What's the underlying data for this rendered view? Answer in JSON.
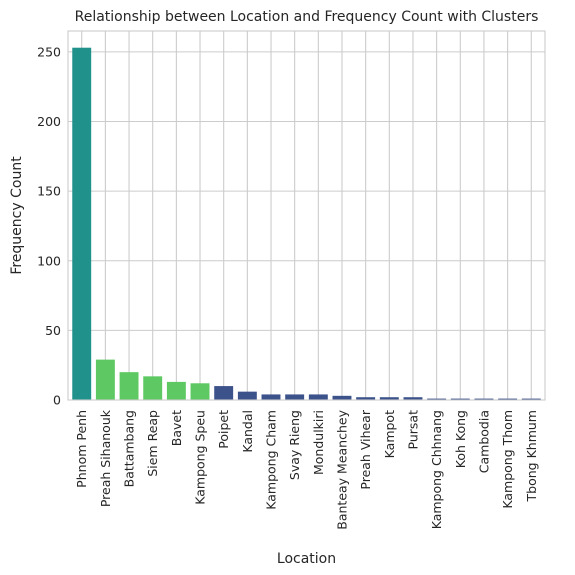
{
  "chart_data": {
    "type": "bar",
    "title": "Relationship between Location and Frequency Count with Clusters",
    "xlabel": "Location",
    "ylabel": "Frequency Count",
    "ylim": [
      0,
      265
    ],
    "yticks": [
      0,
      50,
      100,
      150,
      200,
      250
    ],
    "grid": true,
    "categories": [
      "Phnom Penh",
      "Preah Sihanouk",
      "Battambang",
      "Siem Reap",
      "Bavet",
      "Kampong Speu",
      "Poipet",
      "Kandal",
      "Kampong Cham",
      "Svay Rieng",
      "Mondulkiri",
      "Banteay Meanchey",
      "Preah Vihear",
      "Kampot",
      "Pursat",
      "Kampong Chhnang",
      "Koh Kong",
      "Cambodia",
      "Kampong Thom",
      "Tbong Khmum"
    ],
    "values": [
      253,
      29,
      20,
      17,
      13,
      12,
      10,
      6,
      4,
      4,
      4,
      3,
      2,
      2,
      2,
      1,
      1,
      1,
      1,
      1
    ],
    "clusters": [
      1,
      2,
      2,
      2,
      2,
      2,
      0,
      0,
      0,
      0,
      0,
      0,
      0,
      0,
      0,
      0,
      0,
      0,
      0,
      0
    ],
    "cluster_colors": [
      "#3b528b",
      "#21918c",
      "#5ec962"
    ]
  }
}
